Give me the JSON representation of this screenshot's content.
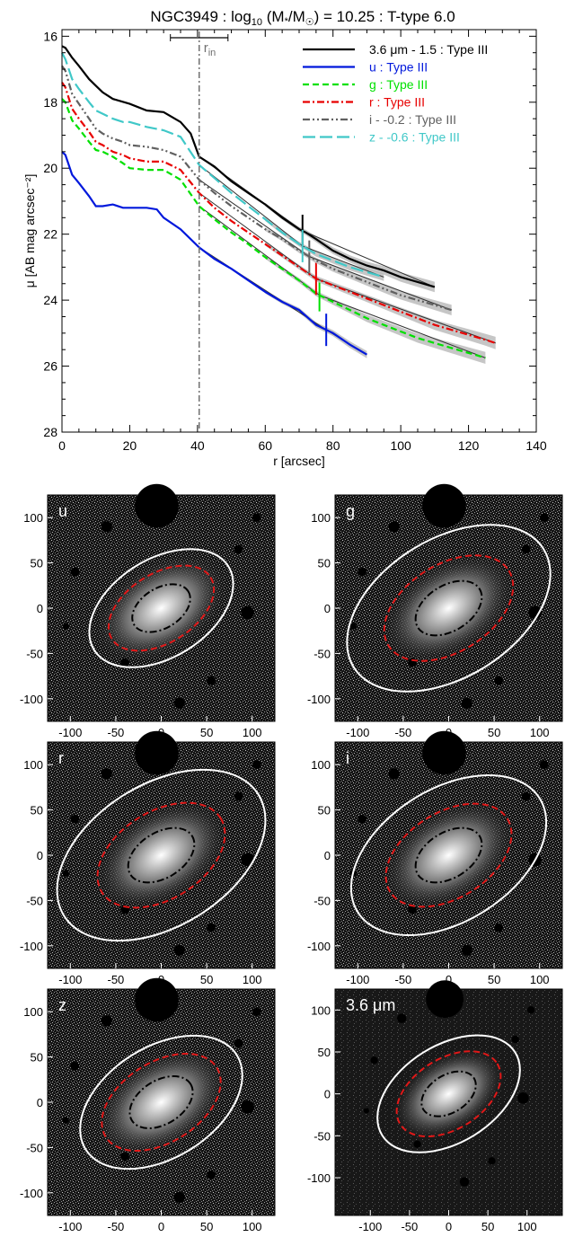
{
  "title_parts": {
    "galaxy": "NGC3949",
    "sep1": " : ",
    "log": "log",
    "log_sub": "10",
    "mass_open": " (M",
    "mass_star": "*",
    "mass_div": "/M",
    "sun": "☉",
    "mass_close": ") = 10.25",
    "sep2": " : ",
    "ttype": "T-type 6.0"
  },
  "rin_label": "r",
  "rin_sub": "in",
  "colors": {
    "black": "#000000",
    "blue": "#0018dc",
    "green": "#00e000",
    "red": "#e80000",
    "gray": "#606060",
    "cyan": "#40c8c8",
    "rin": "#707070",
    "ellipse_outer": "#ffffff",
    "ellipse_mid": "#e01818",
    "ellipse_inner": "#000000"
  },
  "chart_data": [
    {
      "type": "line",
      "title": "NGC3949 : log10 (M*/M☉) = 10.25 : T-type 6.0",
      "xlabel": "r [arcsec]",
      "ylabel": "μ [AB mag arcsec⁻²]",
      "xlim": [
        0,
        140
      ],
      "ylim": [
        28,
        15.8
      ],
      "y_inverted": true,
      "xticks": [
        0,
        20,
        40,
        60,
        80,
        100,
        120,
        140
      ],
      "yticks": [
        16,
        18,
        20,
        22,
        24,
        26,
        28
      ],
      "legend_position": "top-right",
      "r_in": 40.5,
      "r_in_range": [
        32,
        49
      ],
      "series": [
        {
          "name": "3.6 μm - 1.5 : Type III",
          "color_key": "black",
          "dash": "solid",
          "x": [
            0,
            1,
            3,
            5,
            8,
            10,
            12,
            15,
            20,
            25,
            30,
            35,
            38,
            40.5,
            45,
            50,
            55,
            60,
            65,
            70,
            72,
            75,
            80,
            85,
            90,
            95,
            100,
            105,
            110
          ],
          "y": [
            16.3,
            16.35,
            16.65,
            16.9,
            17.3,
            17.5,
            17.7,
            17.9,
            18.05,
            18.25,
            18.3,
            18.6,
            18.95,
            19.65,
            19.95,
            20.4,
            20.75,
            21.1,
            21.5,
            21.85,
            21.95,
            22.15,
            22.5,
            22.75,
            22.95,
            23.1,
            23.3,
            23.45,
            23.6
          ],
          "break_r": 71
        },
        {
          "name": "u : Type III",
          "color_key": "blue",
          "dash": "solid",
          "x": [
            0,
            1,
            3,
            5,
            8,
            10,
            12,
            15,
            18,
            20,
            22,
            25,
            28,
            30,
            35,
            40.5,
            45,
            50,
            55,
            60,
            65,
            70,
            75,
            80,
            85,
            90
          ],
          "y": [
            19.5,
            19.6,
            20.2,
            20.45,
            20.85,
            21.15,
            21.15,
            21.1,
            21.2,
            21.2,
            21.2,
            21.2,
            21.25,
            21.5,
            21.85,
            22.4,
            22.75,
            23.05,
            23.4,
            23.75,
            24.05,
            24.3,
            24.75,
            25.0,
            25.35,
            25.65
          ],
          "break_r": 78
        },
        {
          "name": "g : Type III",
          "color_key": "green",
          "dash": "dashed",
          "x": [
            0,
            1,
            3,
            5,
            8,
            10,
            12,
            15,
            18,
            20,
            25,
            30,
            35,
            40.5,
            45,
            50,
            55,
            60,
            65,
            70,
            75,
            80,
            85,
            90,
            95,
            100,
            105,
            110,
            115,
            120,
            125
          ],
          "y": [
            17.9,
            18.0,
            18.55,
            18.8,
            19.2,
            19.45,
            19.5,
            19.65,
            19.85,
            20.0,
            20.05,
            20.05,
            20.35,
            21.15,
            21.55,
            21.95,
            22.3,
            22.7,
            23.05,
            23.4,
            23.8,
            24.05,
            24.3,
            24.55,
            24.75,
            24.95,
            25.15,
            25.3,
            25.45,
            25.6,
            25.75
          ],
          "break_r": 76
        },
        {
          "name": "r : Type III",
          "color_key": "red",
          "dash": "dashdot",
          "x": [
            0,
            1,
            3,
            5,
            8,
            10,
            12,
            15,
            18,
            20,
            25,
            30,
            35,
            40.5,
            45,
            50,
            55,
            60,
            65,
            70,
            75,
            80,
            85,
            90,
            95,
            100,
            105,
            110,
            115,
            120,
            125,
            128
          ],
          "y": [
            17.4,
            17.55,
            18.2,
            18.5,
            18.9,
            19.2,
            19.3,
            19.5,
            19.6,
            19.7,
            19.8,
            19.8,
            20.05,
            20.75,
            21.2,
            21.6,
            21.95,
            22.3,
            22.65,
            23.0,
            23.35,
            23.55,
            23.75,
            23.95,
            24.15,
            24.35,
            24.55,
            24.75,
            24.9,
            25.05,
            25.2,
            25.3
          ],
          "break_r": 75
        },
        {
          "name": "i - -0.2 : Type III",
          "color_key": "gray",
          "dash": "dashdotdot",
          "x": [
            0,
            1,
            3,
            5,
            8,
            10,
            12,
            15,
            18,
            20,
            25,
            30,
            35,
            40.5,
            45,
            50,
            55,
            60,
            65,
            70,
            75,
            80,
            85,
            90,
            95,
            100,
            105,
            110,
            115
          ],
          "y": [
            16.9,
            17.05,
            17.75,
            18.05,
            18.5,
            18.8,
            18.95,
            19.1,
            19.2,
            19.3,
            19.35,
            19.45,
            19.65,
            20.35,
            20.75,
            21.15,
            21.5,
            21.85,
            22.15,
            22.5,
            22.8,
            23.05,
            23.25,
            23.45,
            23.65,
            23.85,
            24.0,
            24.15,
            24.3
          ],
          "break_r": 73
        },
        {
          "name": "z - -0.6 : Type III",
          "color_key": "cyan",
          "dash": "longdash",
          "x": [
            0,
            1,
            3,
            5,
            8,
            10,
            12,
            15,
            18,
            20,
            25,
            30,
            35,
            40.5,
            45,
            50,
            55,
            60,
            65,
            70,
            75,
            80,
            85,
            90,
            95
          ],
          "y": [
            16.5,
            16.7,
            17.3,
            17.6,
            18.0,
            18.25,
            18.35,
            18.5,
            18.6,
            18.6,
            18.75,
            18.85,
            19.05,
            19.9,
            20.3,
            20.75,
            21.15,
            21.55,
            21.95,
            22.3,
            22.6,
            22.8,
            23.0,
            23.15,
            23.3
          ],
          "break_r": 71
        }
      ]
    },
    {
      "type": "image",
      "panels": [
        {
          "label": "u",
          "xlim": [
            -125,
            125
          ],
          "ylim": [
            -125,
            125
          ],
          "xticks": [
            -100,
            -50,
            0,
            50,
            100
          ],
          "yticks": [
            -100,
            -50,
            0,
            50,
            100
          ],
          "ellipse_outer_axes": [
            87,
            54
          ],
          "ellipse_mid_axes": [
            64,
            38
          ],
          "ellipse_inner_axes": [
            35,
            22
          ],
          "position_angle_deg": -32
        },
        {
          "label": "g",
          "xlim": [
            -125,
            125
          ],
          "ylim": [
            -125,
            125
          ],
          "xticks": [
            -100,
            -50,
            0,
            50,
            100
          ],
          "yticks": [
            -100,
            -50,
            0,
            50,
            100
          ],
          "ellipse_outer_axes": [
            123,
            76
          ],
          "ellipse_mid_axes": [
            78,
            48
          ],
          "ellipse_inner_axes": [
            40,
            25
          ],
          "position_angle_deg": -32
        },
        {
          "label": "r",
          "xlim": [
            -125,
            125
          ],
          "ylim": [
            -125,
            125
          ],
          "xticks": [
            -100,
            -50,
            0,
            50,
            100
          ],
          "yticks": [
            -100,
            -50,
            0,
            50,
            100
          ],
          "ellipse_outer_axes": [
            126,
            78
          ],
          "ellipse_mid_axes": [
            77,
            48
          ],
          "ellipse_inner_axes": [
            40,
            25
          ],
          "position_angle_deg": -32
        },
        {
          "label": "i",
          "xlim": [
            -125,
            125
          ],
          "ylim": [
            -125,
            125
          ],
          "xticks": [
            -100,
            -50,
            0,
            50,
            100
          ],
          "yticks": [
            -100,
            -50,
            0,
            50,
            100
          ],
          "ellipse_outer_axes": [
            118,
            73
          ],
          "ellipse_mid_axes": [
            76,
            47
          ],
          "ellipse_inner_axes": [
            40,
            25
          ],
          "position_angle_deg": -32
        },
        {
          "label": "z",
          "xlim": [
            -125,
            125
          ],
          "ylim": [
            -125,
            125
          ],
          "xticks": [
            -100,
            -50,
            0,
            50,
            100
          ],
          "yticks": [
            -100,
            -50,
            0,
            50,
            100
          ],
          "ellipse_outer_axes": [
            98,
            61
          ],
          "ellipse_mid_axes": [
            72,
            44
          ],
          "ellipse_inner_axes": [
            38,
            24
          ],
          "position_angle_deg": -32
        },
        {
          "label": "3.6 μm",
          "xlim": [
            -145,
            145
          ],
          "ylim": [
            -145,
            125
          ],
          "xticks": [
            -100,
            -50,
            0,
            50,
            100
          ],
          "yticks": [
            -100,
            -50,
            0,
            50,
            100
          ],
          "ellipse_outer_axes": [
            100,
            62
          ],
          "ellipse_mid_axes": [
            73,
            45
          ],
          "ellipse_inner_axes": [
            38,
            24
          ],
          "position_angle_deg": -32
        }
      ]
    }
  ]
}
